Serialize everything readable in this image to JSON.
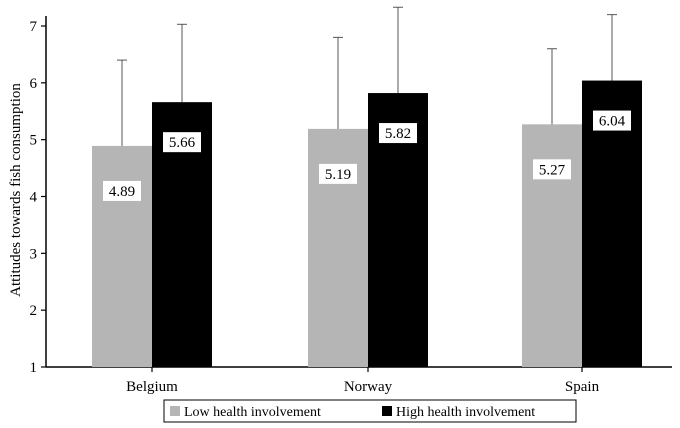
{
  "chart_data": {
    "type": "bar",
    "title": "",
    "xlabel": "",
    "ylabel": "Attitudes towards fish consumption",
    "ylim": [
      1,
      7
    ],
    "yticks": [
      1,
      2,
      3,
      4,
      5,
      6,
      7
    ],
    "categories": [
      "Belgium",
      "Norway",
      "Spain"
    ],
    "series": [
      {
        "name": "Low health involvement",
        "color": "#b5b5b5",
        "values": [
          4.89,
          5.19,
          5.27
        ],
        "error_upper": [
          6.4,
          6.8,
          6.6
        ],
        "labels": [
          "4.89",
          "5.19",
          "5.27"
        ]
      },
      {
        "name": "High health involvement",
        "color": "#000000",
        "values": [
          5.66,
          5.82,
          6.04
        ],
        "error_upper": [
          7.03,
          7.33,
          7.2
        ],
        "labels": [
          "5.66",
          "5.82",
          "6.04"
        ]
      }
    ],
    "legend_position": "bottom",
    "grid": false
  }
}
